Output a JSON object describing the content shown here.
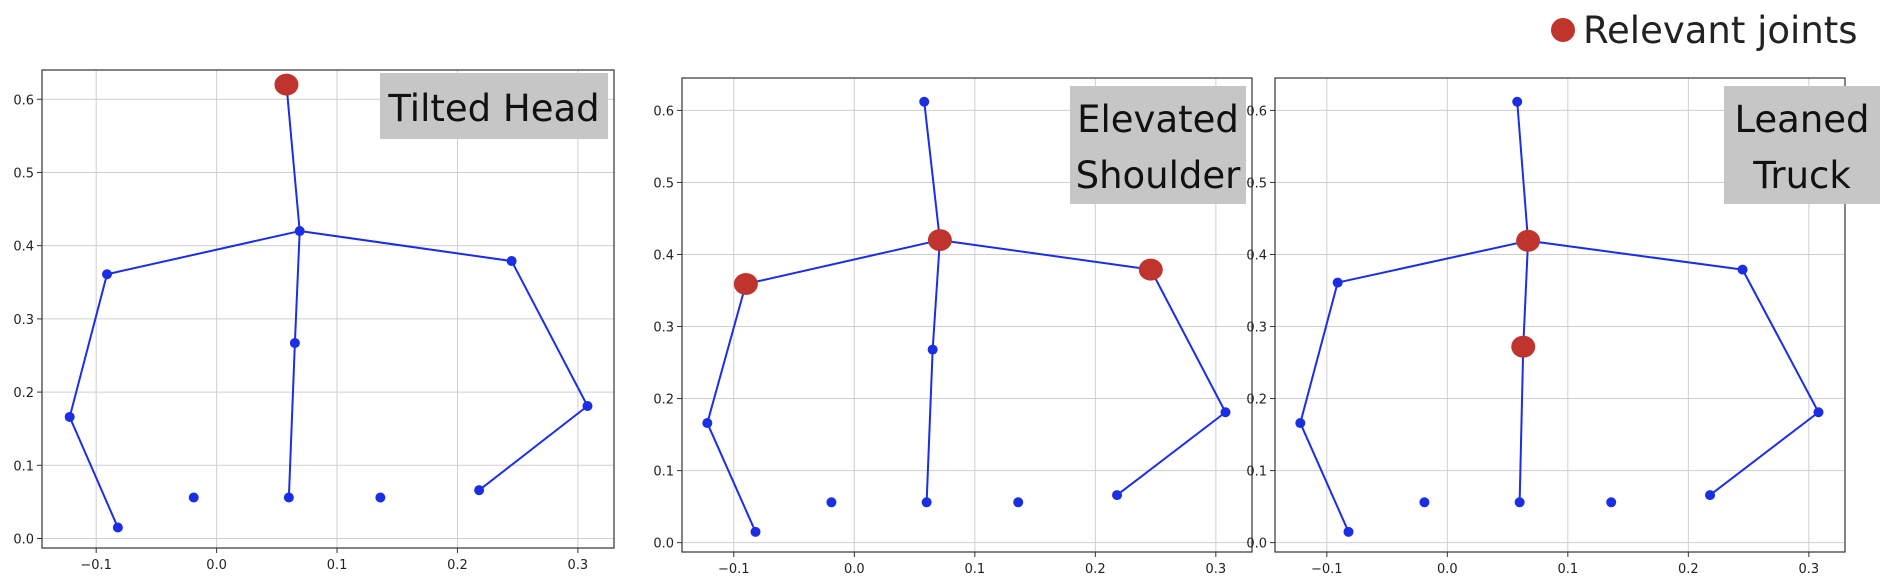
{
  "legend": {
    "label": "Relevant joints",
    "marker_color": "#c0342e"
  },
  "colors": {
    "skeleton": "#1a2ee6",
    "grid": "#cfcfcf",
    "label_box": "#c6c6c6",
    "relevant": "#c0342e"
  },
  "chart_data": [
    {
      "type": "scatter",
      "label_lines": [
        "Tilted Head"
      ],
      "label_position": "top-right",
      "grid": true,
      "xlim": [
        -0.145,
        0.33
      ],
      "ylim": [
        -0.013,
        0.64
      ],
      "xticks": [
        -0.1,
        0.0,
        0.1,
        0.2,
        0.3
      ],
      "xtick_labels": [
        "−0.1",
        "0.0",
        "0.1",
        "0.2",
        "0.3"
      ],
      "yticks": [
        0.0,
        0.1,
        0.2,
        0.3,
        0.4,
        0.5,
        0.6
      ],
      "ytick_labels": [
        "0.0",
        "0.1",
        "0.2",
        "0.3",
        "0.4",
        "0.5",
        "0.6"
      ],
      "joints": [
        {
          "x": 0.058,
          "y": 0.62
        },
        {
          "x": 0.069,
          "y": 0.42
        },
        {
          "x": 0.065,
          "y": 0.267
        },
        {
          "x": 0.06,
          "y": 0.056
        },
        {
          "x": -0.091,
          "y": 0.361
        },
        {
          "x": -0.122,
          "y": 0.166
        },
        {
          "x": -0.082,
          "y": 0.015
        },
        {
          "x": 0.245,
          "y": 0.379
        },
        {
          "x": 0.308,
          "y": 0.181
        },
        {
          "x": 0.218,
          "y": 0.066
        },
        {
          "x": -0.019,
          "y": 0.056
        },
        {
          "x": 0.136,
          "y": 0.056
        }
      ],
      "bones": [
        [
          0,
          1
        ],
        [
          1,
          2
        ],
        [
          2,
          3
        ],
        [
          1,
          4
        ],
        [
          4,
          5
        ],
        [
          5,
          6
        ],
        [
          1,
          7
        ],
        [
          7,
          8
        ],
        [
          8,
          9
        ]
      ],
      "relevant": [
        0
      ]
    },
    {
      "type": "scatter",
      "label_lines": [
        "Elevated",
        "Shoulder"
      ],
      "label_position": "top-right",
      "grid": true,
      "xlim": [
        -0.143,
        0.33
      ],
      "ylim": [
        -0.013,
        0.645
      ],
      "xticks": [
        -0.1,
        0.0,
        0.1,
        0.2,
        0.3
      ],
      "xtick_labels": [
        "−0.1",
        "0.0",
        "0.1",
        "0.2",
        "0.3"
      ],
      "yticks": [
        0.0,
        0.1,
        0.2,
        0.3,
        0.4,
        0.5,
        0.6
      ],
      "ytick_labels": [
        "0.0",
        "0.1",
        "0.2",
        "0.3",
        "0.4",
        "0.5",
        "0.6"
      ],
      "joints": [
        {
          "x": 0.058,
          "y": 0.612
        },
        {
          "x": 0.071,
          "y": 0.42
        },
        {
          "x": 0.065,
          "y": 0.268
        },
        {
          "x": 0.06,
          "y": 0.056
        },
        {
          "x": -0.09,
          "y": 0.359
        },
        {
          "x": -0.122,
          "y": 0.166
        },
        {
          "x": -0.082,
          "y": 0.015
        },
        {
          "x": 0.246,
          "y": 0.379
        },
        {
          "x": 0.308,
          "y": 0.181
        },
        {
          "x": 0.218,
          "y": 0.066
        },
        {
          "x": -0.019,
          "y": 0.056
        },
        {
          "x": 0.136,
          "y": 0.056
        }
      ],
      "bones": [
        [
          0,
          1
        ],
        [
          1,
          2
        ],
        [
          2,
          3
        ],
        [
          1,
          4
        ],
        [
          4,
          5
        ],
        [
          5,
          6
        ],
        [
          1,
          7
        ],
        [
          7,
          8
        ],
        [
          8,
          9
        ]
      ],
      "relevant": [
        1,
        4,
        7
      ]
    },
    {
      "type": "scatter",
      "label_lines": [
        "Leaned",
        "Truck"
      ],
      "label_position": "top-right",
      "grid": true,
      "xlim": [
        -0.143,
        0.33
      ],
      "ylim": [
        -0.013,
        0.645
      ],
      "xticks": [
        -0.1,
        0.0,
        0.1,
        0.2,
        0.3
      ],
      "xtick_labels": [
        "−0.1",
        "0.0",
        "0.1",
        "0.2",
        "0.3"
      ],
      "yticks": [
        0.0,
        0.1,
        0.2,
        0.3,
        0.4,
        0.5,
        0.6
      ],
      "ytick_labels": [
        "0.0",
        "0.1",
        "0.2",
        "0.3",
        "0.4",
        "0.5",
        "0.6"
      ],
      "joints": [
        {
          "x": 0.058,
          "y": 0.612
        },
        {
          "x": 0.067,
          "y": 0.419
        },
        {
          "x": 0.063,
          "y": 0.272
        },
        {
          "x": 0.06,
          "y": 0.056
        },
        {
          "x": -0.091,
          "y": 0.361
        },
        {
          "x": -0.122,
          "y": 0.166
        },
        {
          "x": -0.082,
          "y": 0.015
        },
        {
          "x": 0.245,
          "y": 0.379
        },
        {
          "x": 0.308,
          "y": 0.181
        },
        {
          "x": 0.218,
          "y": 0.066
        },
        {
          "x": -0.019,
          "y": 0.056
        },
        {
          "x": 0.136,
          "y": 0.056
        }
      ],
      "bones": [
        [
          0,
          1
        ],
        [
          1,
          2
        ],
        [
          2,
          3
        ],
        [
          1,
          4
        ],
        [
          4,
          5
        ],
        [
          5,
          6
        ],
        [
          1,
          7
        ],
        [
          7,
          8
        ],
        [
          8,
          9
        ]
      ],
      "relevant": [
        1,
        2
      ]
    }
  ]
}
